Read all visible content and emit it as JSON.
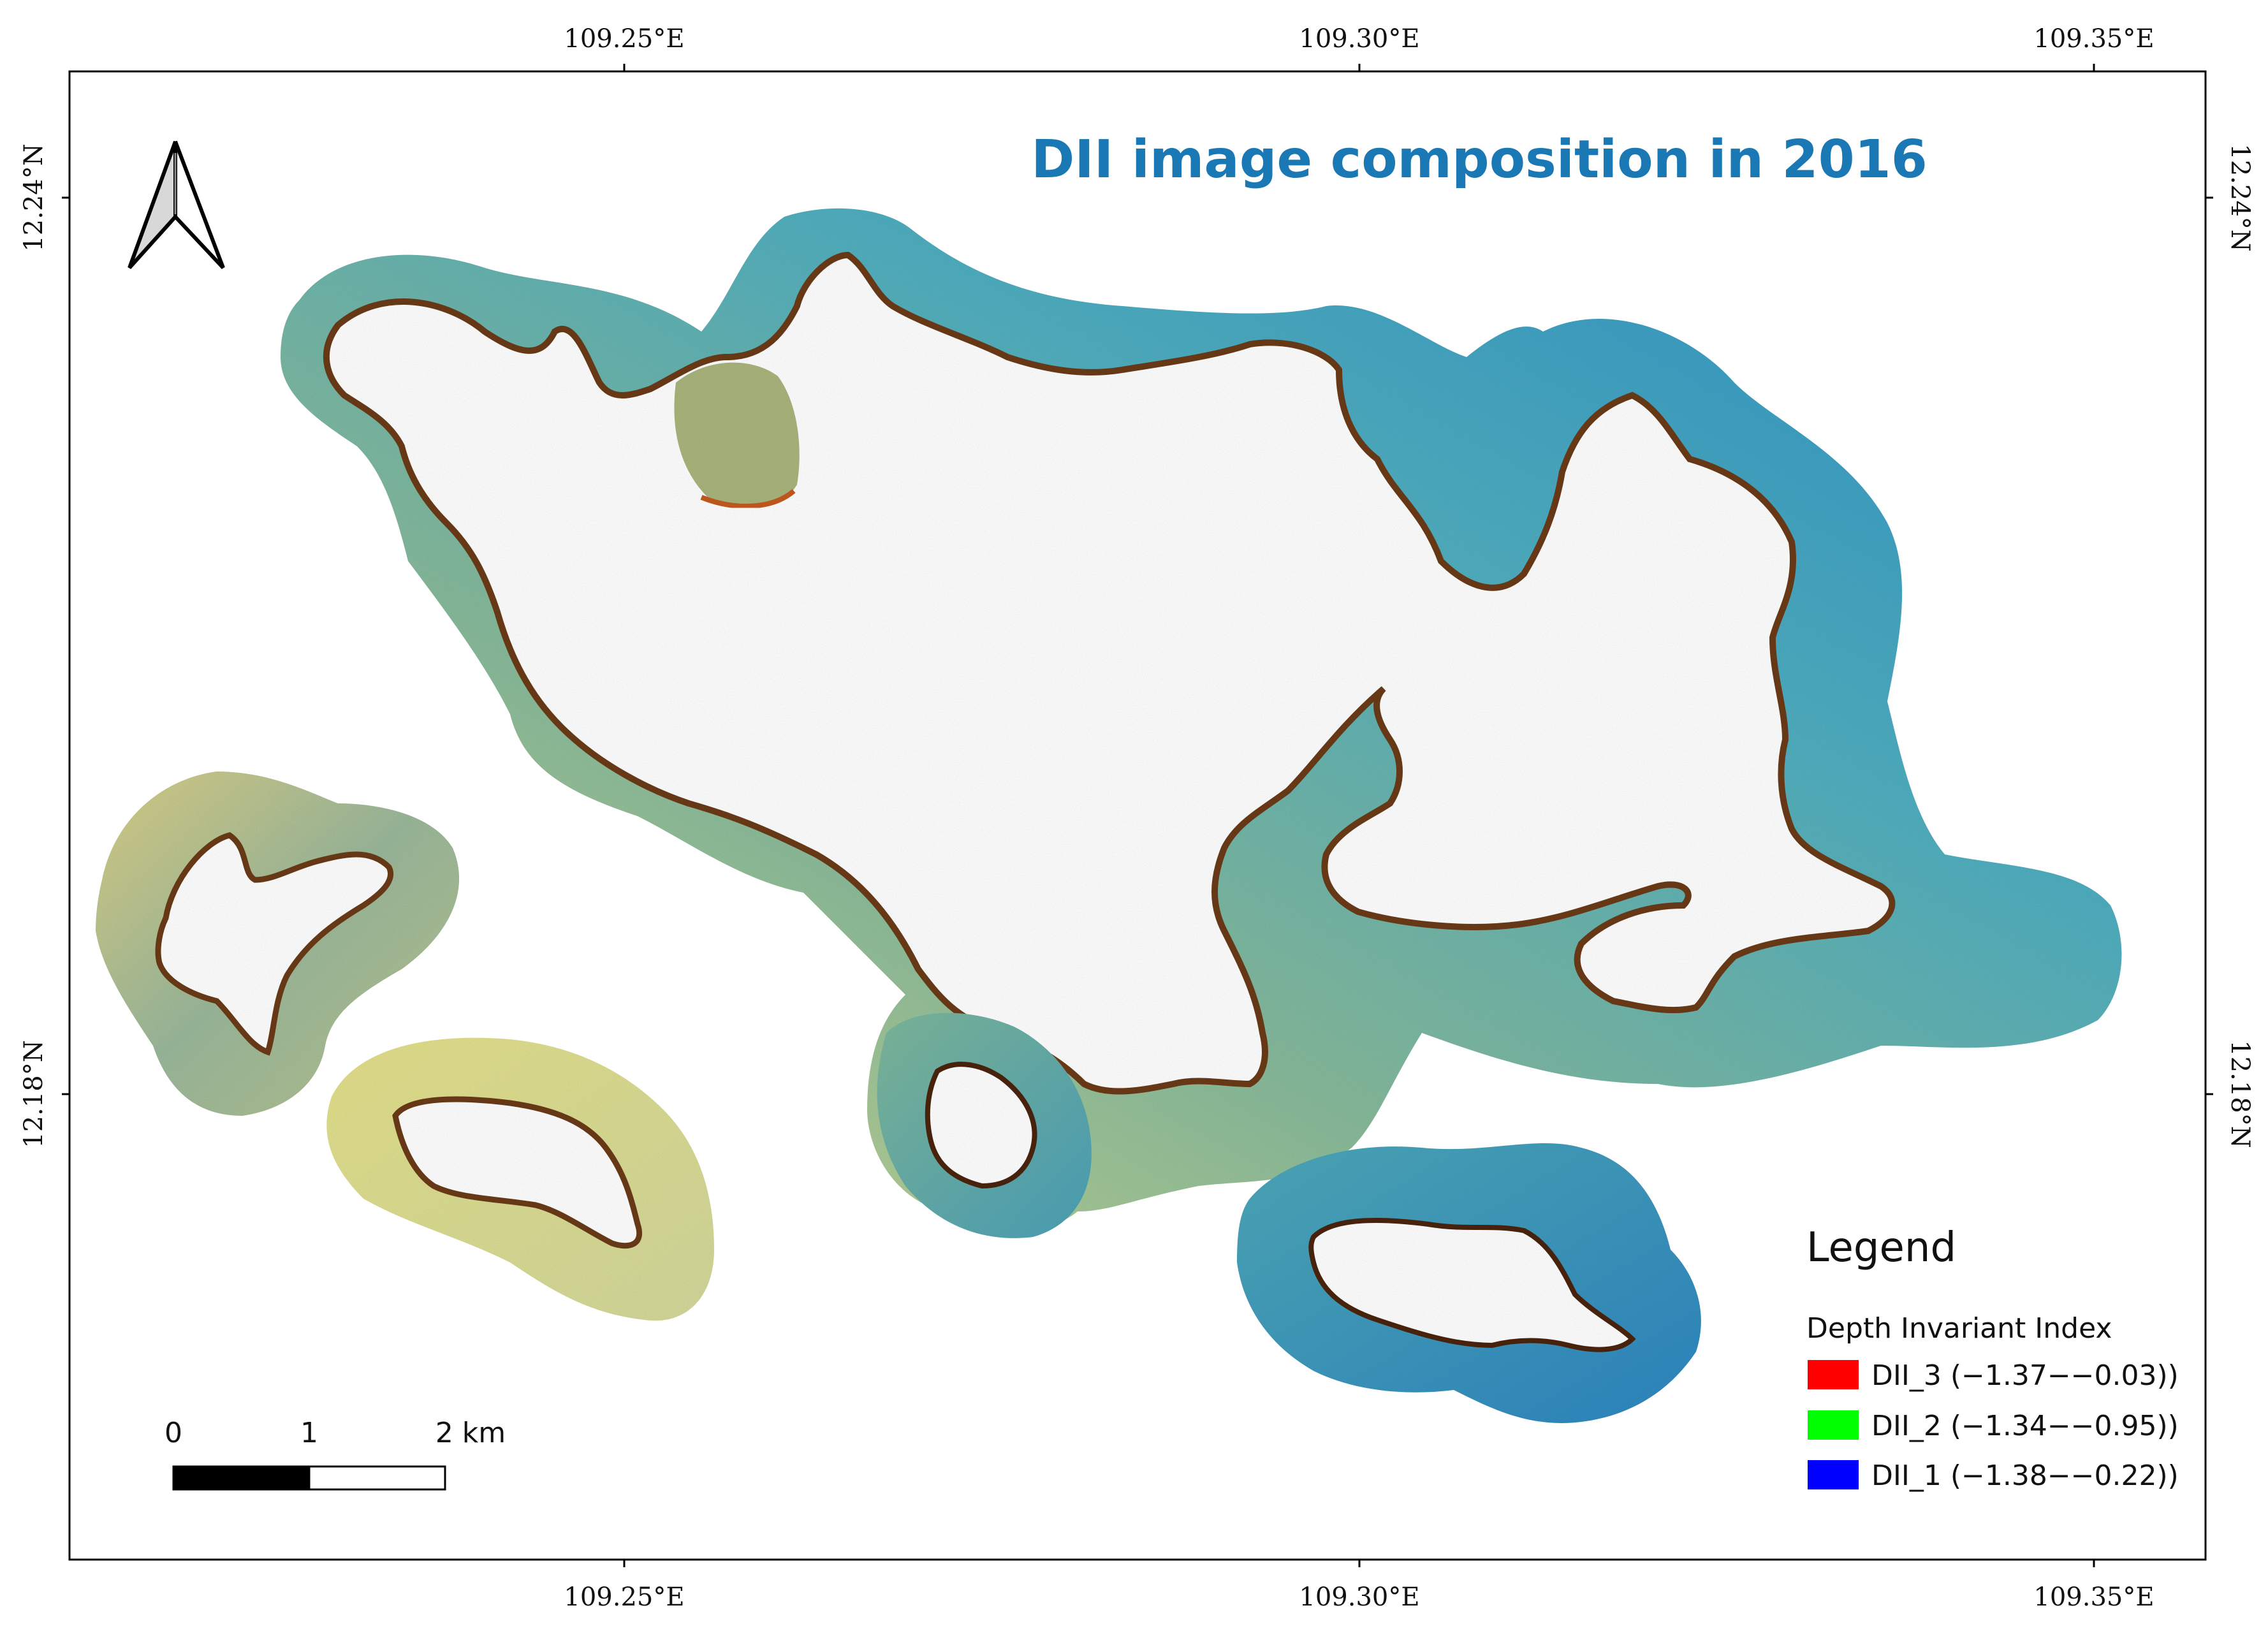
{
  "title": "DII image composition in 2016",
  "axes": {
    "lon_labels": [
      "109.25°E",
      "109.30°E",
      "109.35°E"
    ],
    "lat_labels": [
      "12.24°N",
      "12.18°N"
    ]
  },
  "legend": {
    "heading": "Legend",
    "subtitle": "Depth Invariant Index",
    "items": [
      {
        "label": "DII_3 (−1.37−−0.03))",
        "color": "#ff0000"
      },
      {
        "label": "DII_2 (−1.34−−0.95))",
        "color": "#00ff00"
      },
      {
        "label": "DII_1 (−1.38−−0.22))",
        "color": "#0000ff"
      }
    ]
  },
  "scale_bar": {
    "labels": [
      "0",
      "1",
      "2 km"
    ]
  },
  "north_arrow": {
    "icon": "north-arrow-icon"
  }
}
